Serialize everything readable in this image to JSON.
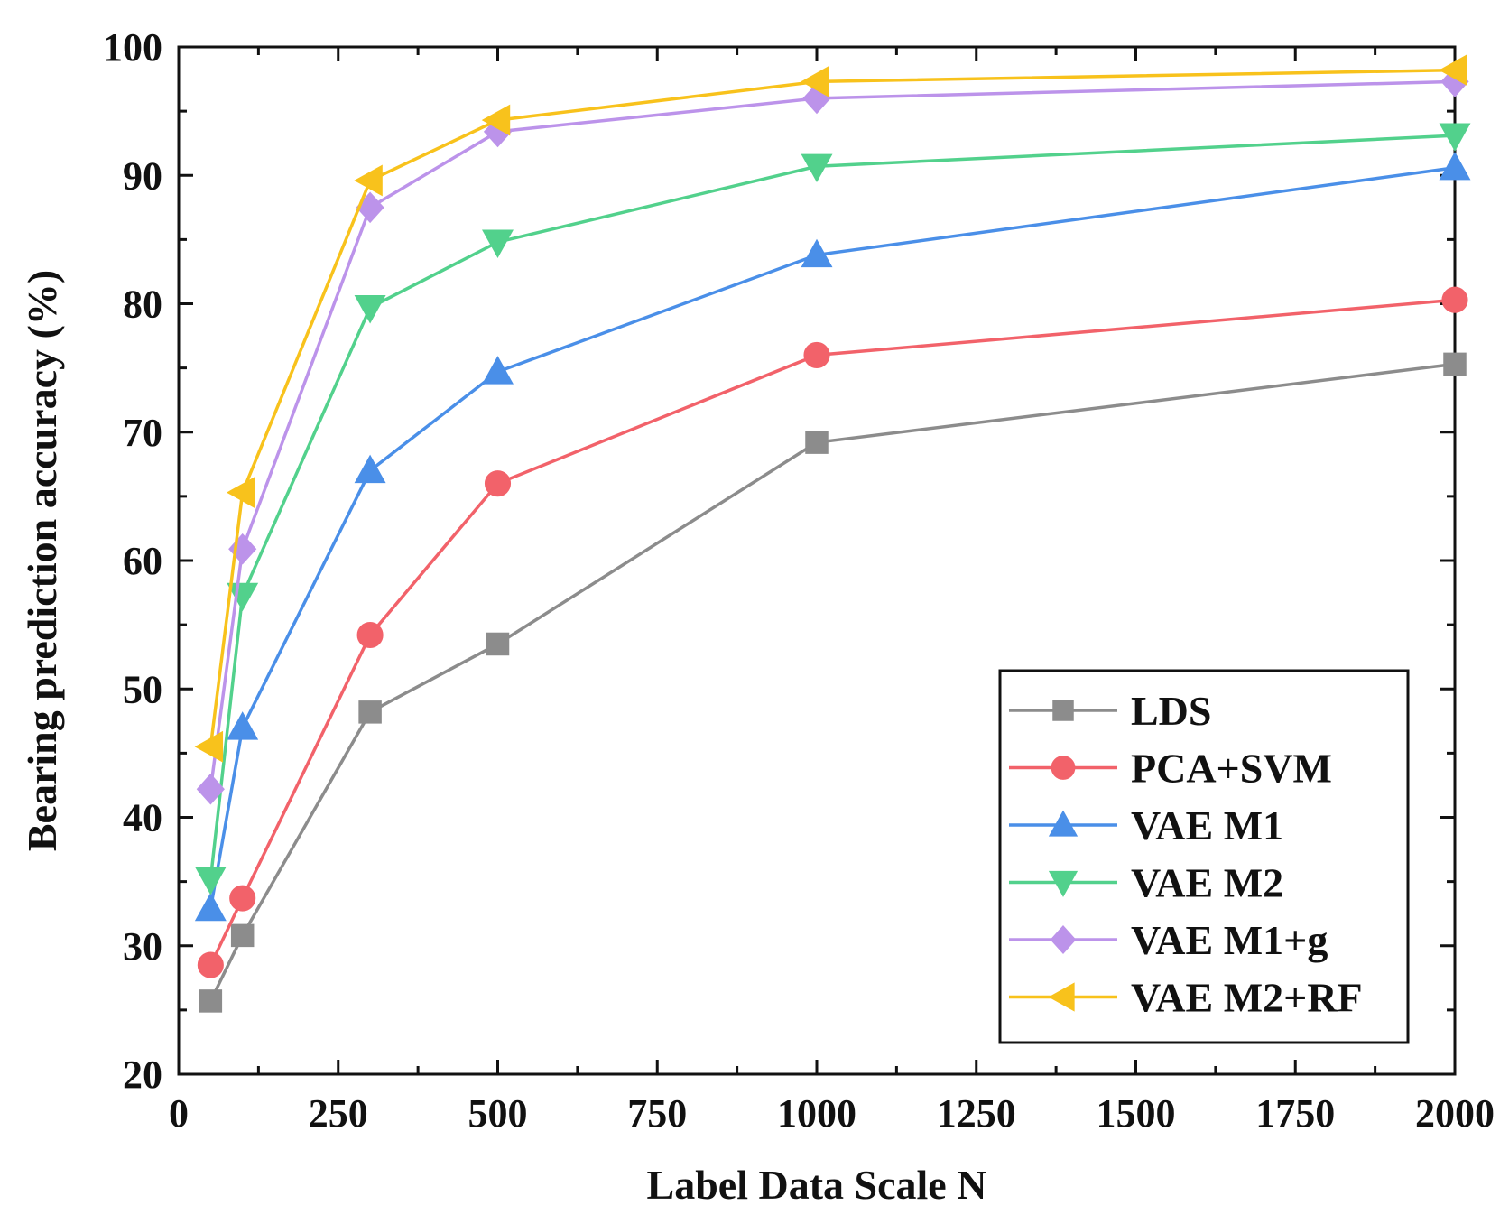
{
  "chart_data": {
    "type": "line",
    "title": "",
    "xlabel": "Label Data Scale N",
    "ylabel": "Bearing prediction accuracy (%)",
    "x": [
      50,
      100,
      300,
      500,
      1000,
      2000
    ],
    "xlim": [
      0,
      2000
    ],
    "ylim": [
      20,
      100
    ],
    "xticks": [
      0,
      250,
      500,
      750,
      1000,
      1250,
      1500,
      1750,
      2000
    ],
    "yticks": [
      20,
      30,
      40,
      50,
      60,
      70,
      80,
      90,
      100
    ],
    "xtick_labels": [
      "0",
      "250",
      "500",
      "750",
      "1000",
      "1250",
      "1500",
      "1750",
      "2000"
    ],
    "ytick_labels": [
      "20",
      "30",
      "40",
      "50",
      "60",
      "70",
      "80",
      "90",
      "100"
    ],
    "grid": false,
    "legend_position": "bottom-right",
    "series": [
      {
        "name": "LDS",
        "marker": "square",
        "color": "#8c8c8c",
        "values": [
          25.7,
          30.8,
          48.2,
          53.5,
          69.2,
          75.3
        ]
      },
      {
        "name": "PCA+SVM",
        "marker": "circle",
        "color": "#f2626a",
        "values": [
          28.5,
          33.7,
          54.2,
          66.0,
          76.0,
          80.3
        ]
      },
      {
        "name": "VAE M1",
        "marker": "triangle-up",
        "color": "#4a8fe8",
        "values": [
          32.9,
          47.0,
          67.0,
          74.7,
          83.8,
          90.6
        ]
      },
      {
        "name": "VAE M2",
        "marker": "triangle-down",
        "color": "#52d18c",
        "values": [
          35.2,
          57.3,
          79.7,
          84.8,
          90.7,
          93.1
        ]
      },
      {
        "name": "VAE M1+g",
        "marker": "diamond",
        "color": "#bc93ea",
        "values": [
          42.2,
          60.9,
          87.5,
          93.4,
          96.0,
          97.3
        ]
      },
      {
        "name": "VAE M2+RF",
        "marker": "triangle-left",
        "color": "#f8c21c",
        "values": [
          45.5,
          65.3,
          89.6,
          94.3,
          97.3,
          98.2
        ]
      }
    ]
  }
}
